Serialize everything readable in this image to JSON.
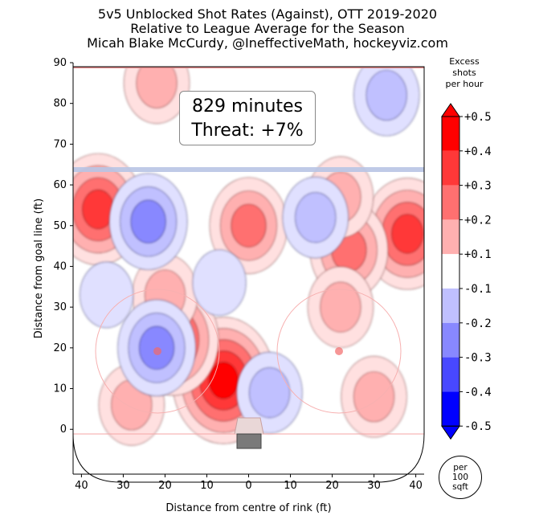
{
  "title_lines": [
    "5v5 Unblocked Shot Rates (Against), OTT 2019-2020",
    "Relative to League Average for the Season",
    "Micah Blake McCurdy, @IneffectiveMath, hockeyviz.com"
  ],
  "annotation": {
    "minutes": "829 minutes",
    "threat": "Threat: +7%"
  },
  "colorbar": {
    "title_lines": [
      "Excess",
      "shots",
      "per hour"
    ],
    "tick_labels": [
      "+0.5",
      "+0.4",
      "+0.3",
      "+0.2",
      "+0.1",
      "-0.1",
      "-0.2",
      "-0.3",
      "-0.4",
      "-0.5"
    ],
    "colors": [
      "#ff0000",
      "#ff3838",
      "#ff7070",
      "#ffb0b0",
      "#ffffff",
      "#c0c0ff",
      "#8888ff",
      "#4848ff",
      "#0000ff"
    ]
  },
  "badge_lines": [
    "per",
    "100",
    "sqft"
  ],
  "chart_data": {
    "type": "heatmap",
    "title": "5v5 Unblocked Shot Rates (Against), OTT 2019-2020",
    "subtitle": "Relative to League Average for the Season",
    "xlabel": "Distance from centre of rink (ft)",
    "ylabel": "Distance from goal line (ft)",
    "xlim": [
      42,
      -42
    ],
    "ylim": [
      -11,
      90
    ],
    "x_ticks": [
      40,
      30,
      20,
      10,
      0,
      10,
      20,
      30,
      40
    ],
    "y_ticks": [
      0,
      10,
      20,
      30,
      40,
      50,
      60,
      70,
      80,
      90
    ],
    "blue_line_y": 64,
    "color_levels": [
      -0.5,
      -0.4,
      -0.3,
      -0.2,
      -0.1,
      0.1,
      0.2,
      0.3,
      0.4,
      0.5
    ],
    "hotspots": [
      {
        "x": 6,
        "y": 12,
        "peak": 0.5
      },
      {
        "x": 36,
        "y": 54,
        "peak": 0.4
      },
      {
        "x": 18,
        "y": 22,
        "peak": 0.4
      },
      {
        "x": -38,
        "y": 48,
        "peak": 0.4
      },
      {
        "x": -24,
        "y": 44,
        "peak": 0.3
      },
      {
        "x": 0,
        "y": 50,
        "peak": 0.3
      },
      {
        "x": -22,
        "y": 57,
        "peak": 0.2
      },
      {
        "x": 22,
        "y": 85,
        "peak": 0.2
      },
      {
        "x": -22,
        "y": 30,
        "peak": 0.2
      },
      {
        "x": 28,
        "y": 6,
        "peak": 0.2
      },
      {
        "x": -30,
        "y": 8,
        "peak": 0.2
      },
      {
        "x": 20,
        "y": 33,
        "peak": 0.2
      },
      {
        "x": 22,
        "y": 20,
        "peak": -0.3
      },
      {
        "x": 24,
        "y": 51,
        "peak": -0.3
      },
      {
        "x": -16,
        "y": 52,
        "peak": -0.2
      },
      {
        "x": -33,
        "y": 82,
        "peak": -0.2
      },
      {
        "x": 7,
        "y": 36,
        "peak": -0.1
      },
      {
        "x": -5,
        "y": 9,
        "peak": -0.2
      },
      {
        "x": 34,
        "y": 33,
        "peak": -0.1
      }
    ]
  }
}
